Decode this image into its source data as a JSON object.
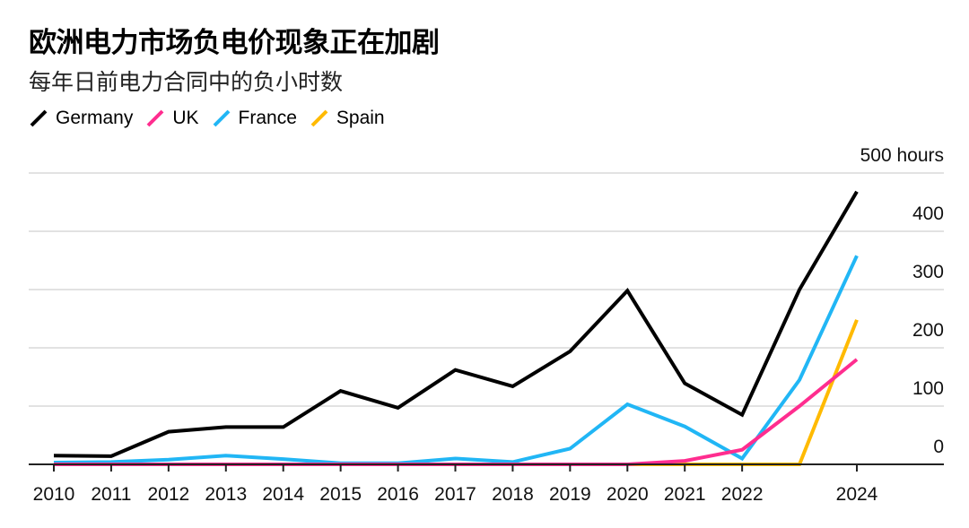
{
  "title": "欧洲电力市场负电价现象正在加剧",
  "subtitle": "每年日前电力合同中的负小时数",
  "chart_data": {
    "type": "line",
    "title": "欧洲电力市场负电价现象正在加剧",
    "subtitle": "每年日前电力合同中的负小时数",
    "x": [
      2010,
      2011,
      2012,
      2013,
      2014,
      2015,
      2016,
      2017,
      2018,
      2019,
      2020,
      2021,
      2022,
      2023,
      2024
    ],
    "x_tick_labels": [
      "2010",
      "2011",
      "2012",
      "2013",
      "2014",
      "2015",
      "2016",
      "2017",
      "2018",
      "2019",
      "2020",
      "2021",
      "2022",
      "2024"
    ],
    "y_tick_labels": [
      "0",
      "100",
      "200",
      "300",
      "400",
      "500 hours"
    ],
    "y_ticks": [
      0,
      100,
      200,
      300,
      400,
      500
    ],
    "ylim": [
      0,
      500
    ],
    "xlim": [
      2010,
      2024
    ],
    "grid": true,
    "legend_position": "top-left",
    "series": [
      {
        "name": "Germany",
        "color": "#000000",
        "values": [
          15,
          14,
          56,
          64,
          64,
          126,
          97,
          162,
          134,
          194,
          298,
          139,
          85,
          300,
          468
        ]
      },
      {
        "name": "UK",
        "color": "#ff2d8f",
        "values": [
          0,
          0,
          0,
          0,
          0,
          0,
          0,
          0,
          0,
          0,
          0,
          6,
          25,
          100,
          180
        ]
      },
      {
        "name": "France",
        "color": "#21b6f5",
        "values": [
          3,
          4,
          8,
          15,
          9,
          2,
          2,
          10,
          4,
          27,
          103,
          65,
          10,
          145,
          358
        ]
      },
      {
        "name": "Spain",
        "color": "#ffba00",
        "values": [
          0,
          0,
          0,
          0,
          0,
          0,
          0,
          0,
          0,
          0,
          0,
          0,
          0,
          0,
          248
        ]
      }
    ]
  }
}
